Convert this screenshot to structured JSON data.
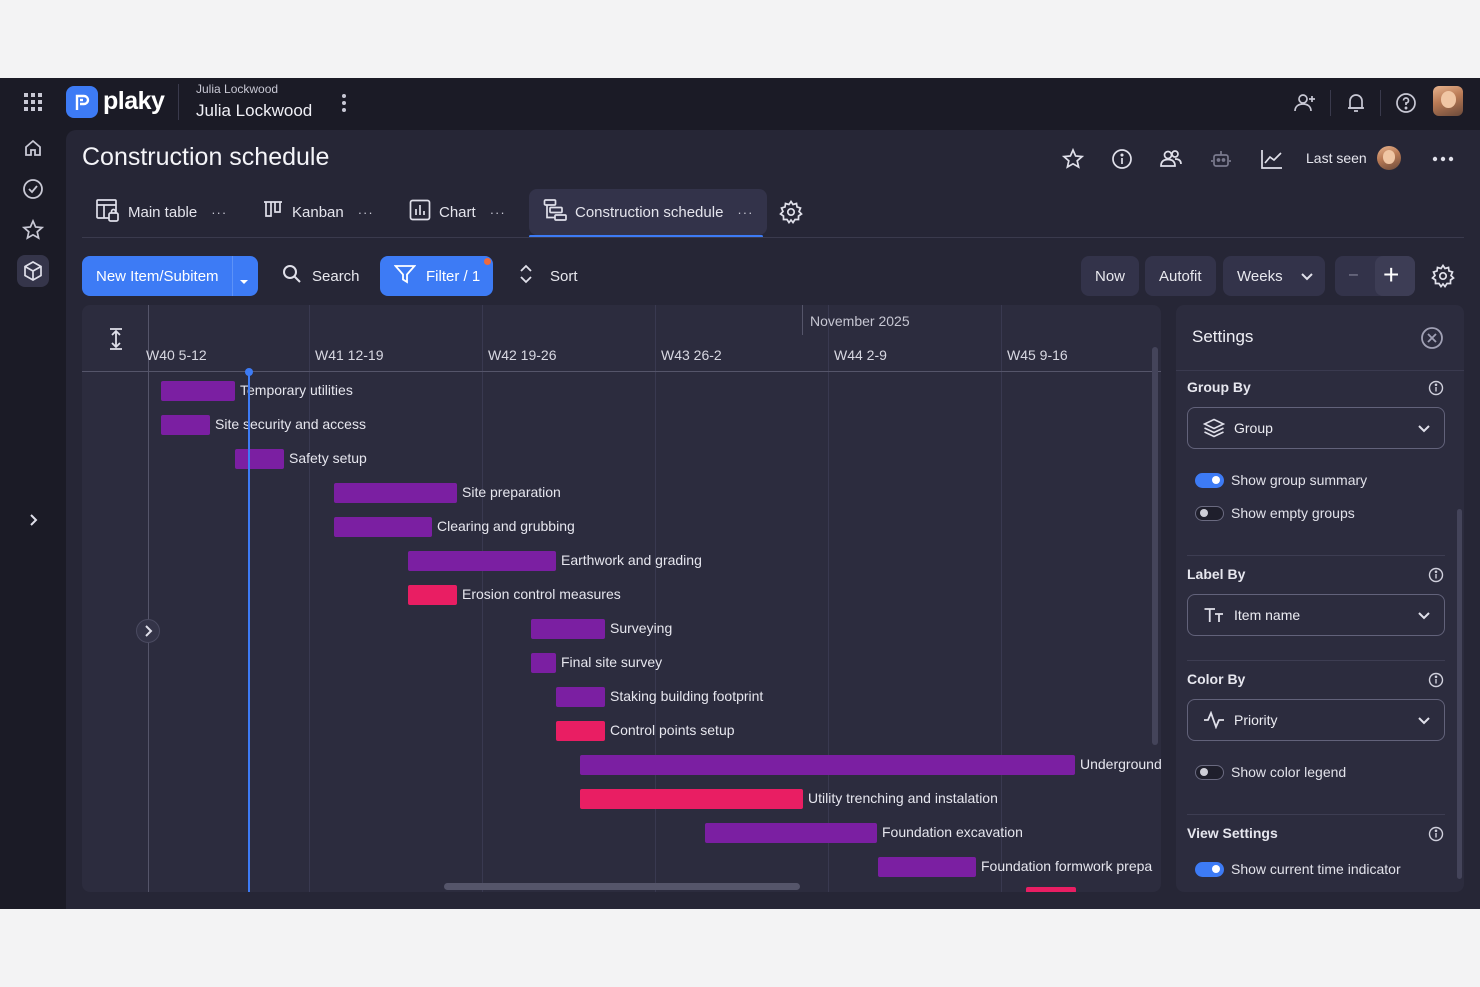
{
  "app": {
    "name": "plaky"
  },
  "workspace": {
    "owner_small": "Julia Lockwood",
    "owner_name": "Julia Lockwood"
  },
  "topbar": {
    "icons": [
      "invite-user-icon",
      "bell-icon",
      "help-icon",
      "user-avatar"
    ]
  },
  "rail": {
    "icons": [
      "apps-grid-icon",
      "home-icon",
      "check-circle-icon",
      "star-icon",
      "cube-icon",
      "expand-chevron-icon"
    ]
  },
  "board": {
    "title": "Construction schedule",
    "header_icons": [
      "star-icon",
      "info-icon",
      "members-icon",
      "automation-icon",
      "activity-chart-icon"
    ],
    "last_seen_label": "Last seen",
    "more": "..."
  },
  "tabs": [
    {
      "label": "Main table",
      "icon": "table-lock-icon",
      "more": "···"
    },
    {
      "label": "Kanban",
      "icon": "kanban-icon",
      "more": "···"
    },
    {
      "label": "Chart",
      "icon": "chart-icon",
      "more": "···"
    },
    {
      "label": "Construction schedule",
      "icon": "gantt-icon",
      "more": "···",
      "active": true
    }
  ],
  "toolbar": {
    "new_item": "New Item/Subitem",
    "search": "Search",
    "filter": "Filter / 1",
    "sort": "Sort",
    "now": "Now",
    "autofit": "Autofit",
    "weeks": "Weeks",
    "zoom_out": "–",
    "zoom_in": "+"
  },
  "gantt": {
    "month": "November 2025",
    "weeks": [
      "W40 5-12",
      "W41 12-19",
      "W42 19-26",
      "W43 26-2",
      "W44 2-9",
      "W45 9-16"
    ],
    "items": [
      {
        "label": "Temporary utilities",
        "color": "purple"
      },
      {
        "label": "Site security and access",
        "color": "purple"
      },
      {
        "label": "Safety setup",
        "color": "purple"
      },
      {
        "label": "Site preparation",
        "color": "purple"
      },
      {
        "label": "Clearing and grubbing",
        "color": "purple"
      },
      {
        "label": "Earthwork and grading",
        "color": "purple"
      },
      {
        "label": "Erosion control measures",
        "color": "pink"
      },
      {
        "label": "Surveying",
        "color": "purple"
      },
      {
        "label": "Final site survey",
        "color": "purple"
      },
      {
        "label": "Staking building footprint",
        "color": "purple"
      },
      {
        "label": "Control points setup",
        "color": "pink"
      },
      {
        "label": "Underground",
        "color": "purple"
      },
      {
        "label": "Utility trenching and instalation",
        "color": "pink"
      },
      {
        "label": "Foundation excavation",
        "color": "purple"
      },
      {
        "label": "Foundation formwork prepa",
        "color": "purple"
      }
    ],
    "colors": {
      "purple": "#7b1fa2",
      "pink": "#e91e63"
    }
  },
  "settings": {
    "title": "Settings",
    "group_by": {
      "title": "Group By",
      "value": "Group"
    },
    "show_group_summary": {
      "label": "Show group summary",
      "on": true
    },
    "show_empty_groups": {
      "label": "Show empty groups",
      "on": false
    },
    "label_by": {
      "title": "Label By",
      "value": "Item name"
    },
    "color_by": {
      "title": "Color By",
      "value": "Priority"
    },
    "show_color_legend": {
      "label": "Show color legend",
      "on": false
    },
    "view_settings": {
      "title": "View Settings"
    },
    "show_current_time": {
      "label": "Show current time indicator",
      "on": true
    }
  }
}
